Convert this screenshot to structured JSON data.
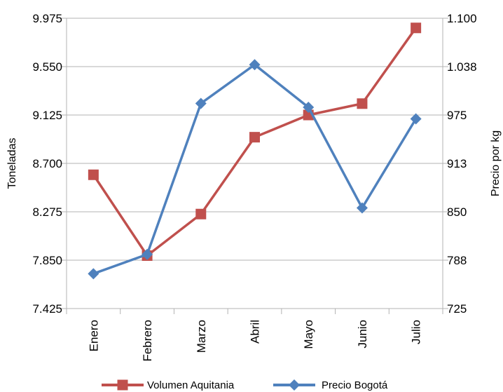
{
  "chart_data": {
    "type": "line",
    "categories": [
      "Enero",
      "Febrero",
      "Marzo",
      "Abril",
      "Mayo",
      "Junio",
      "Julio"
    ],
    "ylabel": "Toneladas",
    "y2label": "Precio por kg",
    "ylim": [
      7425,
      9975
    ],
    "y2lim": [
      725,
      1100
    ],
    "y_ticks": [
      "7.425",
      "7.850",
      "8.275",
      "8.700",
      "9.125",
      "9.550",
      "9.975"
    ],
    "y2_ticks": [
      "725",
      "788",
      "850",
      "913",
      "975",
      "1.038",
      "1.100"
    ],
    "grid": true,
    "legend_position": "bottom",
    "series": [
      {
        "name": "Volumen Aquitania",
        "axis": "left",
        "marker": "square",
        "color": "#C0504D",
        "values": [
          8600,
          7890,
          8255,
          8930,
          9125,
          9225,
          9890
        ]
      },
      {
        "name": "Precio Bogotá",
        "axis": "right",
        "marker": "diamond",
        "color": "#4F81BD",
        "values": [
          770,
          795,
          990,
          1040,
          985,
          855,
          970
        ]
      }
    ]
  }
}
